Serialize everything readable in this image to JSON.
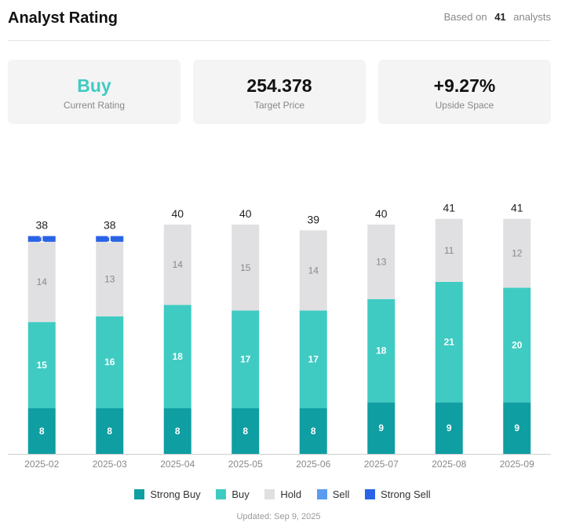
{
  "header": {
    "title": "Analyst Rating",
    "based_prefix": "Based on",
    "analyst_count": "41",
    "based_suffix": "analysts"
  },
  "cards": [
    {
      "value": "Buy",
      "label": "Current Rating"
    },
    {
      "value": "254.378",
      "label": "Target Price"
    },
    {
      "value": "+9.27%",
      "label": "Upside Space"
    }
  ],
  "colors": {
    "strong_buy": "#0f9ea2",
    "buy": "#3fcbc2",
    "hold": "#e0e0e2",
    "sell": "#5b9cf0",
    "strong_sell": "#2a63e6"
  },
  "chart_data": {
    "type": "bar",
    "stacked": true,
    "categories": [
      "2025-02",
      "2025-03",
      "2025-04",
      "2025-05",
      "2025-06",
      "2025-07",
      "2025-08",
      "2025-09"
    ],
    "series": [
      {
        "name": "Strong Buy",
        "key": "strong_buy",
        "values": [
          8,
          8,
          8,
          8,
          8,
          9,
          9,
          9
        ]
      },
      {
        "name": "Buy",
        "key": "buy",
        "values": [
          15,
          16,
          18,
          17,
          17,
          18,
          21,
          20
        ]
      },
      {
        "name": "Hold",
        "key": "hold",
        "values": [
          14,
          13,
          14,
          15,
          14,
          13,
          11,
          12
        ]
      },
      {
        "name": "Sell",
        "key": "sell",
        "values": [
          0,
          0,
          0,
          0,
          0,
          0,
          0,
          0
        ]
      },
      {
        "name": "Strong Sell",
        "key": "strong_sell",
        "values": [
          1,
          1,
          0,
          0,
          0,
          0,
          0,
          0
        ]
      }
    ],
    "totals": [
      38,
      38,
      40,
      40,
      39,
      40,
      41,
      41
    ],
    "legend_position": "bottom"
  },
  "footer": {
    "updated": "Updated: Sep 9, 2025"
  }
}
